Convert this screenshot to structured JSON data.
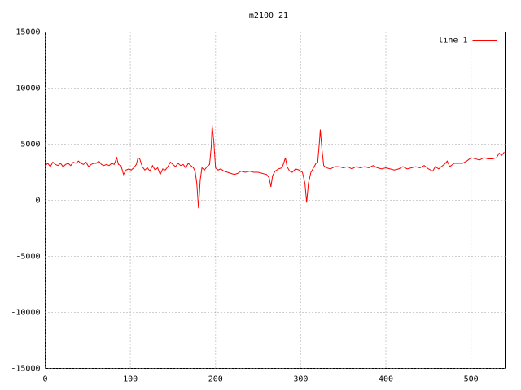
{
  "chart_data": {
    "type": "line",
    "title": "m2100_21",
    "x": [
      0,
      3,
      6,
      9,
      12,
      15,
      18,
      21,
      24,
      27,
      30,
      33,
      36,
      39,
      42,
      45,
      48,
      51,
      54,
      57,
      60,
      63,
      66,
      69,
      72,
      75,
      78,
      81,
      84,
      86,
      89,
      92,
      95,
      98,
      101,
      104,
      107,
      109,
      111,
      114,
      117,
      120,
      123,
      126,
      129,
      132,
      135,
      138,
      141,
      144,
      147,
      150,
      153,
      156,
      159,
      162,
      165,
      168,
      171,
      174,
      176,
      178,
      180,
      182,
      184,
      187,
      190,
      193,
      195,
      196,
      198,
      200,
      203,
      206,
      210,
      214,
      218,
      222,
      226,
      230,
      235,
      240,
      245,
      250,
      255,
      260,
      263,
      265,
      267,
      270,
      274,
      278,
      280,
      282,
      284,
      287,
      290,
      294,
      298,
      302,
      305,
      307,
      309,
      312,
      315,
      318,
      320,
      322,
      323,
      325,
      327,
      330,
      335,
      340,
      345,
      350,
      355,
      360,
      365,
      370,
      375,
      380,
      385,
      390,
      395,
      400,
      405,
      410,
      415,
      420,
      425,
      430,
      435,
      440,
      445,
      450,
      455,
      458,
      462,
      465,
      470,
      472,
      475,
      480,
      485,
      490,
      495,
      500,
      505,
      510,
      515,
      520,
      525,
      530,
      533,
      536,
      539
    ],
    "series": [
      {
        "name": "line 1",
        "color": "#ff0000",
        "values": [
          3100,
          3300,
          3000,
          3400,
          3200,
          3100,
          3300,
          3000,
          3200,
          3300,
          3100,
          3400,
          3300,
          3500,
          3300,
          3200,
          3400,
          3000,
          3200,
          3300,
          3300,
          3500,
          3200,
          3100,
          3200,
          3100,
          3300,
          3200,
          3800,
          3200,
          3100,
          2300,
          2700,
          2800,
          2700,
          2900,
          3200,
          3800,
          3700,
          3000,
          2700,
          2900,
          2600,
          3100,
          2700,
          2900,
          2300,
          2800,
          2700,
          3000,
          3400,
          3200,
          3000,
          3300,
          3100,
          3200,
          2900,
          3300,
          3100,
          2900,
          2600,
          1500,
          -700,
          1800,
          2900,
          2700,
          3000,
          3200,
          4800,
          6700,
          5200,
          2900,
          2700,
          2800,
          2600,
          2500,
          2400,
          2300,
          2400,
          2600,
          2500,
          2600,
          2500,
          2500,
          2400,
          2300,
          2000,
          1200,
          2200,
          2600,
          2800,
          2900,
          3300,
          3800,
          3000,
          2600,
          2500,
          2800,
          2700,
          2500,
          1500,
          -200,
          1500,
          2500,
          2900,
          3300,
          3400,
          5200,
          6300,
          4500,
          3100,
          2900,
          2800,
          3000,
          3000,
          2900,
          3000,
          2800,
          3000,
          2900,
          3000,
          2900,
          3100,
          2900,
          2800,
          2900,
          2800,
          2700,
          2800,
          3000,
          2800,
          2900,
          3000,
          2900,
          3100,
          2800,
          2600,
          3000,
          2800,
          3000,
          3300,
          3500,
          3000,
          3300,
          3300,
          3300,
          3500,
          3800,
          3700,
          3600,
          3800,
          3700,
          3700,
          3800,
          4200,
          4000,
          4300
        ]
      }
    ],
    "xlim": [
      0,
      540
    ],
    "ylim": [
      -15000,
      15000
    ],
    "xticks": [
      0,
      100,
      200,
      300,
      400,
      500
    ],
    "yticks": [
      -15000,
      -10000,
      -5000,
      0,
      5000,
      10000,
      15000
    ],
    "grid": true,
    "legend": "top-right"
  }
}
